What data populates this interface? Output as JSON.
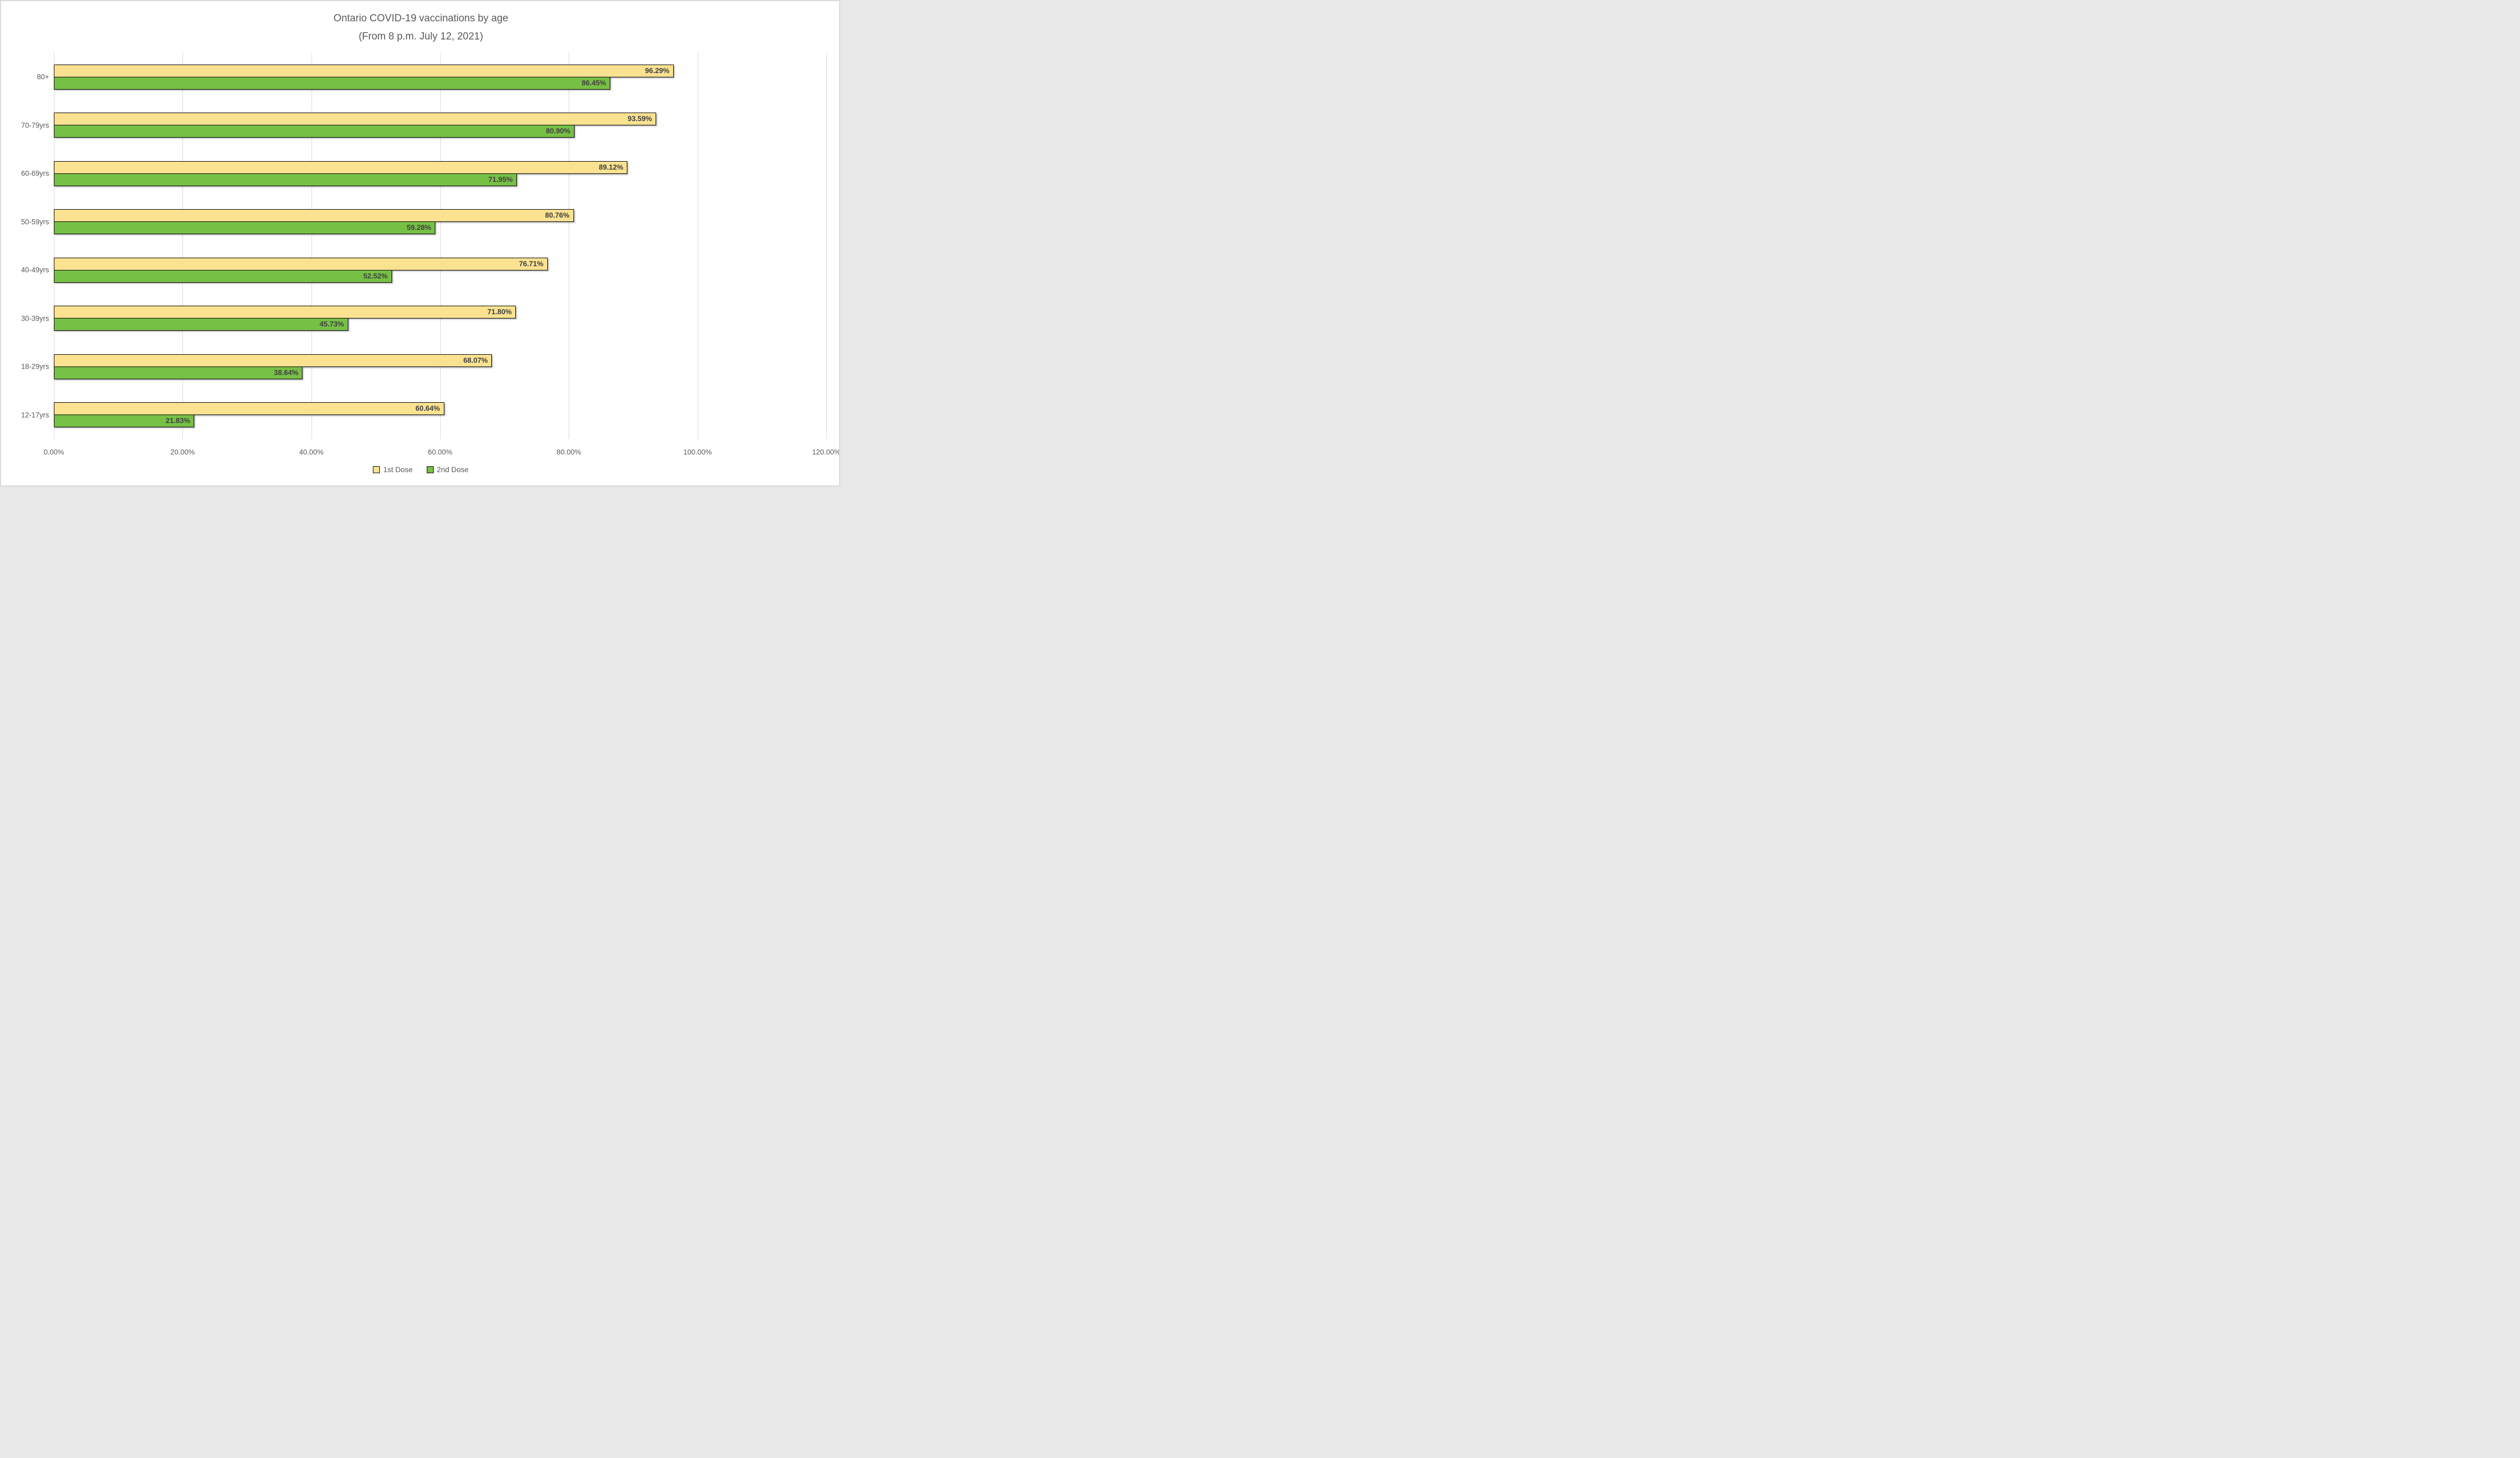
{
  "title": {
    "line1": "Ontario COVID-19 vaccinations by age",
    "line2": "(From 8 p.m. July 12, 2021)"
  },
  "chart_data": {
    "type": "bar",
    "orientation": "horizontal",
    "title": "Ontario COVID-19 vaccinations by age (From 8 p.m. July 12, 2021)",
    "categories": [
      "80+",
      "70-79yrs",
      "60-69yrs",
      "50-59yrs",
      "40-49yrs",
      "30-39yrs",
      "18-29yrs",
      "12-17yrs"
    ],
    "series": [
      {
        "name": "1st Dose",
        "color": "#fbe291",
        "values": [
          96.29,
          93.59,
          89.12,
          80.76,
          76.71,
          71.8,
          68.07,
          60.64
        ],
        "labels": [
          "96.29%",
          "93.59%",
          "89.12%",
          "80.76%",
          "76.71%",
          "71.80%",
          "68.07%",
          "60.64%"
        ]
      },
      {
        "name": "2nd Dose",
        "color": "#76c045",
        "values": [
          86.45,
          80.9,
          71.95,
          59.28,
          52.52,
          45.73,
          38.64,
          21.83
        ],
        "labels": [
          "86.45%",
          "80.90%",
          "71.95%",
          "59.28%",
          "52.52%",
          "45.73%",
          "38.64%",
          "21.83%"
        ]
      }
    ],
    "xlabel": "",
    "ylabel": "",
    "xlim": [
      0,
      120
    ],
    "x_tick_values": [
      0,
      20,
      40,
      60,
      80,
      100,
      120
    ],
    "x_tick_labels": [
      "0.00%",
      "20.00%",
      "40.00%",
      "60.00%",
      "80.00%",
      "100.00%",
      "120.00%"
    ],
    "grid": "vertical-major-only",
    "legend_position": "bottom-center",
    "bar_border_color": "#000000",
    "value_label_color": "#404040",
    "axis_text_color": "#595959",
    "gridline_color": "#d9d9d9"
  }
}
